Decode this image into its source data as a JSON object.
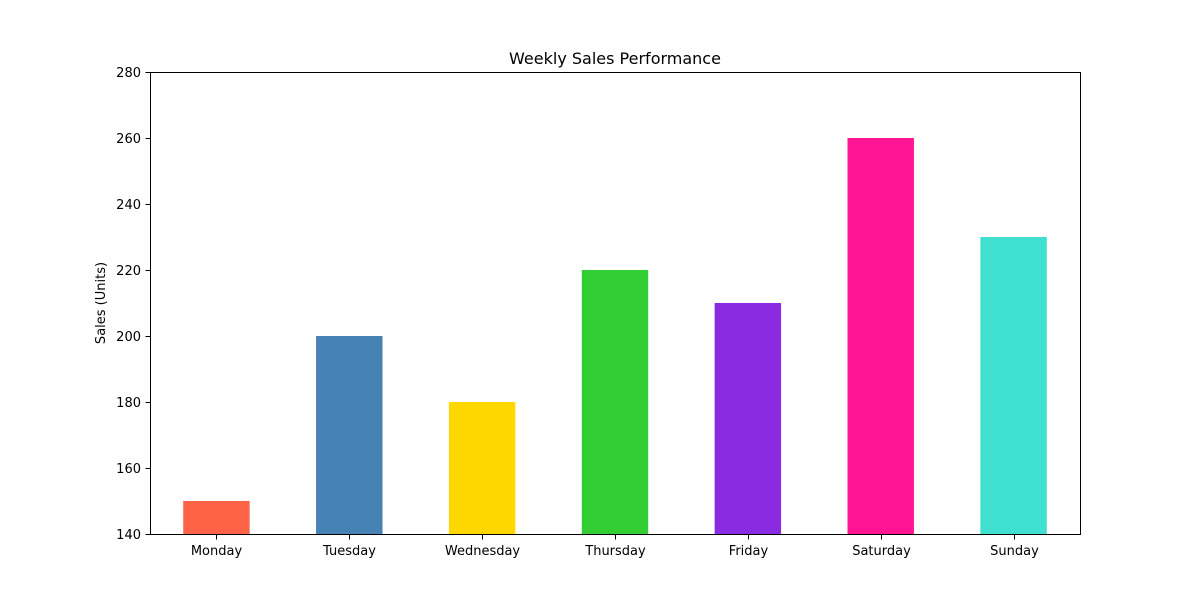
{
  "chart_data": {
    "type": "bar",
    "title": "Weekly Sales Performance",
    "xlabel": "",
    "ylabel": "Sales (Units)",
    "categories": [
      "Monday",
      "Tuesday",
      "Wednesday",
      "Thursday",
      "Friday",
      "Saturday",
      "Sunday"
    ],
    "values": [
      150,
      200,
      180,
      220,
      210,
      260,
      230
    ],
    "colors": [
      "#ff6347",
      "#4682b4",
      "#ffd700",
      "#32cd32",
      "#8a2be2",
      "#ff1493",
      "#40e0d0"
    ],
    "ylim": [
      140,
      280
    ],
    "yticks": [
      140,
      160,
      180,
      200,
      220,
      240,
      260,
      280
    ],
    "grid": false,
    "legend": "none"
  }
}
